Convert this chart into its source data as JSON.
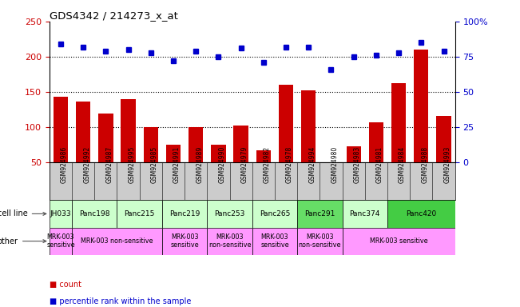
{
  "title": "GDS4342 / 214273_x_at",
  "samples": [
    "GSM924986",
    "GSM924992",
    "GSM924987",
    "GSM924995",
    "GSM924985",
    "GSM924991",
    "GSM924989",
    "GSM924990",
    "GSM924979",
    "GSM924982",
    "GSM924978",
    "GSM924994",
    "GSM924980",
    "GSM924983",
    "GSM924981",
    "GSM924984",
    "GSM924988",
    "GSM924993"
  ],
  "counts": [
    143,
    137,
    120,
    140,
    100,
    75,
    100,
    75,
    103,
    68,
    160,
    153,
    50,
    73,
    107,
    163,
    210,
    116
  ],
  "percentiles_pct": [
    84,
    82,
    79,
    80,
    78,
    72,
    79,
    75,
    81,
    71,
    82,
    82,
    66,
    75,
    76,
    78,
    85,
    79
  ],
  "cell_lines": [
    {
      "name": "JH033",
      "start": 0,
      "end": 1,
      "color": "#ccffcc"
    },
    {
      "name": "Panc198",
      "start": 1,
      "end": 3,
      "color": "#ccffcc"
    },
    {
      "name": "Panc215",
      "start": 3,
      "end": 5,
      "color": "#ccffcc"
    },
    {
      "name": "Panc219",
      "start": 5,
      "end": 7,
      "color": "#ccffcc"
    },
    {
      "name": "Panc253",
      "start": 7,
      "end": 9,
      "color": "#ccffcc"
    },
    {
      "name": "Panc265",
      "start": 9,
      "end": 11,
      "color": "#ccffcc"
    },
    {
      "name": "Panc291",
      "start": 11,
      "end": 13,
      "color": "#66dd66"
    },
    {
      "name": "Panc374",
      "start": 13,
      "end": 15,
      "color": "#ccffcc"
    },
    {
      "name": "Panc420",
      "start": 15,
      "end": 18,
      "color": "#44cc44"
    }
  ],
  "other_groups": [
    {
      "name": "MRK-003\nsensitive",
      "start": 0,
      "end": 1,
      "color": "#ff99ff"
    },
    {
      "name": "MRK-003 non-sensitive",
      "start": 1,
      "end": 5,
      "color": "#ff99ff"
    },
    {
      "name": "MRK-003\nsensitive",
      "start": 5,
      "end": 7,
      "color": "#ff99ff"
    },
    {
      "name": "MRK-003\nnon-sensitive",
      "start": 7,
      "end": 9,
      "color": "#ff99ff"
    },
    {
      "name": "MRK-003\nsensitive",
      "start": 9,
      "end": 11,
      "color": "#ff99ff"
    },
    {
      "name": "MRK-003\nnon-sensitive",
      "start": 11,
      "end": 13,
      "color": "#ff99ff"
    },
    {
      "name": "MRK-003 sensitive",
      "start": 13,
      "end": 18,
      "color": "#ff99ff"
    }
  ],
  "ylim_left": [
    50,
    250
  ],
  "ylim_right": [
    0,
    100
  ],
  "yticks_left": [
    50,
    100,
    150,
    200,
    250
  ],
  "yticks_right": [
    0,
    25,
    50,
    75,
    100
  ],
  "bar_color": "#cc0000",
  "dot_color": "#0000cc",
  "tick_color_left": "#cc0000",
  "tick_color_right": "#0000cc",
  "sample_bg_color": "#cccccc",
  "legend_bar_label": "count",
  "legend_dot_label": "percentile rank within the sample",
  "cell_line_label": "cell line",
  "other_label": "other"
}
